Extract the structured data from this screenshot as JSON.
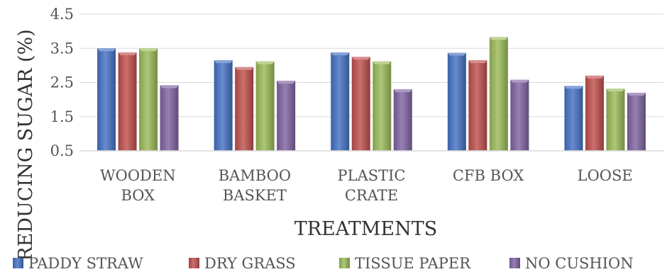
{
  "chart_data": {
    "type": "bar",
    "title": "",
    "xlabel": "TREATMENTS",
    "ylabel": "REDUCING SUGAR (%)",
    "ylim": [
      0.5,
      4.5
    ],
    "yticks": [
      "0.5",
      "1.5",
      "2.5",
      "3.5",
      "4.5"
    ],
    "ytick_values": [
      0.5,
      1.5,
      2.5,
      3.5,
      4.5
    ],
    "grid": true,
    "legend_position": "bottom",
    "categories": [
      [
        "WOODEN",
        "BOX"
      ],
      [
        "BAMBOO",
        "BASKET"
      ],
      [
        "PLASTIC",
        "CRATE"
      ],
      [
        "CFB BOX"
      ],
      [
        "LOOSE"
      ]
    ],
    "series": [
      {
        "name": "PADDY STRAW",
        "color": "#4472C4",
        "values": [
          3.5,
          3.15,
          3.38,
          3.37,
          2.4
        ]
      },
      {
        "name": "DRY GRASS",
        "color": "#C0504D",
        "values": [
          3.38,
          2.95,
          3.25,
          3.15,
          2.7
        ]
      },
      {
        "name": "TISSUE PAPER",
        "color": "#9BBB59",
        "values": [
          3.5,
          3.12,
          3.12,
          3.83,
          2.32
        ]
      },
      {
        "name": "NO CUSHION",
        "color": "#8064A2",
        "values": [
          2.42,
          2.55,
          2.3,
          2.58,
          2.2
        ]
      }
    ]
  }
}
